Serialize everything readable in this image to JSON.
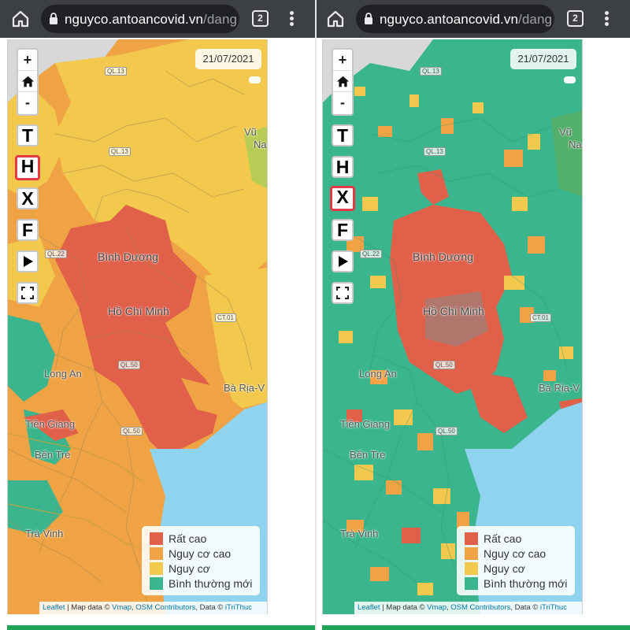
{
  "browser": {
    "url_domain": "nguyco.antoancovid.vn",
    "url_path": "/dang",
    "tab_count": "2"
  },
  "map": {
    "date": "21/07/2021",
    "zoom_in": "+",
    "zoom_out": "-",
    "layers": [
      "T",
      "H",
      "X",
      "F"
    ],
    "left_active_layer": "H",
    "right_active_layer": "X",
    "places": {
      "binh_duong": "Bình Dương",
      "ho_chi_minh": "Hồ Chí Minh",
      "long_an": "Long An",
      "tien_giang": "Tiền Giang",
      "ben_tre": "Bến Tre",
      "tra_vinh": "Trà Vinh",
      "ba_ria": "Bà Rịa-V",
      "vung": "Vũ",
      "na": "Na"
    },
    "roads": [
      "QL.13",
      "QL.13",
      "QL.22",
      "CT.01",
      "QL.50",
      "QL.50"
    ],
    "legend": [
      {
        "label": "Rất cao",
        "color": "#e0604a"
      },
      {
        "label": "Nguy cơ cao",
        "color": "#f0a345"
      },
      {
        "label": "Nguy cơ",
        "color": "#f2c94c"
      },
      {
        "label": "Bình thường mới",
        "color": "#3bb58e"
      }
    ],
    "attribution": {
      "leaflet": "Leaflet",
      "map_data": " | Map data © ",
      "vmap": "Vmap",
      "comma": ", ",
      "osm": "OSM Contributors",
      "data": ", Data © ",
      "itrithuc": "iTriThuc"
    }
  },
  "colors": {
    "very_high": "#e0604a",
    "high": "#f0a345",
    "medium": "#f2c94c",
    "normal": "#3bb58e",
    "sea": "#8fd3ee",
    "chrome": "#3c4043",
    "accent_bar": "#22a35a"
  }
}
